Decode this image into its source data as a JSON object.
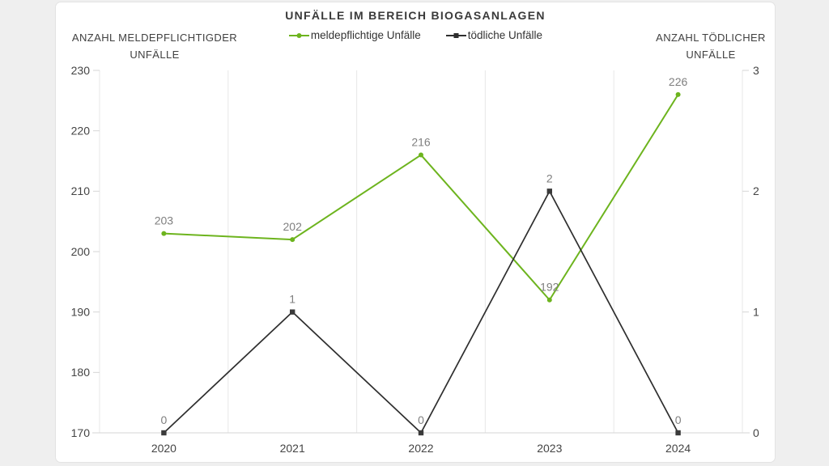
{
  "chart_data": {
    "type": "line",
    "title": "UNFÄLLE IM BEREICH BIOGASANLAGEN",
    "categories": [
      "2020",
      "2021",
      "2022",
      "2023",
      "2024"
    ],
    "series": [
      {
        "name": "meldepflichtige Unfälle",
        "axis": "left",
        "color": "#6db41e",
        "marker": "circle",
        "values": [
          203,
          202,
          216,
          192,
          226
        ]
      },
      {
        "name": "tödliche Unfälle",
        "axis": "right",
        "color": "#2e2e2e",
        "marker": "square",
        "values": [
          0,
          1,
          0,
          2,
          0
        ]
      }
    ],
    "left_axis": {
      "title_line1": "ANZAHL MELDEPFLICHTIGDER",
      "title_line2": "UNFÄLLE",
      "min": 170,
      "max": 230,
      "ticks": [
        230,
        220,
        210,
        200,
        190,
        180,
        170
      ]
    },
    "right_axis": {
      "title_line1": "ANZAHL TÖDLICHER",
      "title_line2": "UNFÄLLE",
      "min": 0,
      "max": 3,
      "ticks": [
        3,
        2,
        1,
        0
      ]
    },
    "legend_position": "top",
    "grid": "vertical-between-categories-only",
    "data_labels": true,
    "colors": {
      "grid": "#e7e7e7",
      "axis_line": "#d6d6d6",
      "tick_label": "#444444",
      "data_label": "#7f7f7f"
    }
  }
}
